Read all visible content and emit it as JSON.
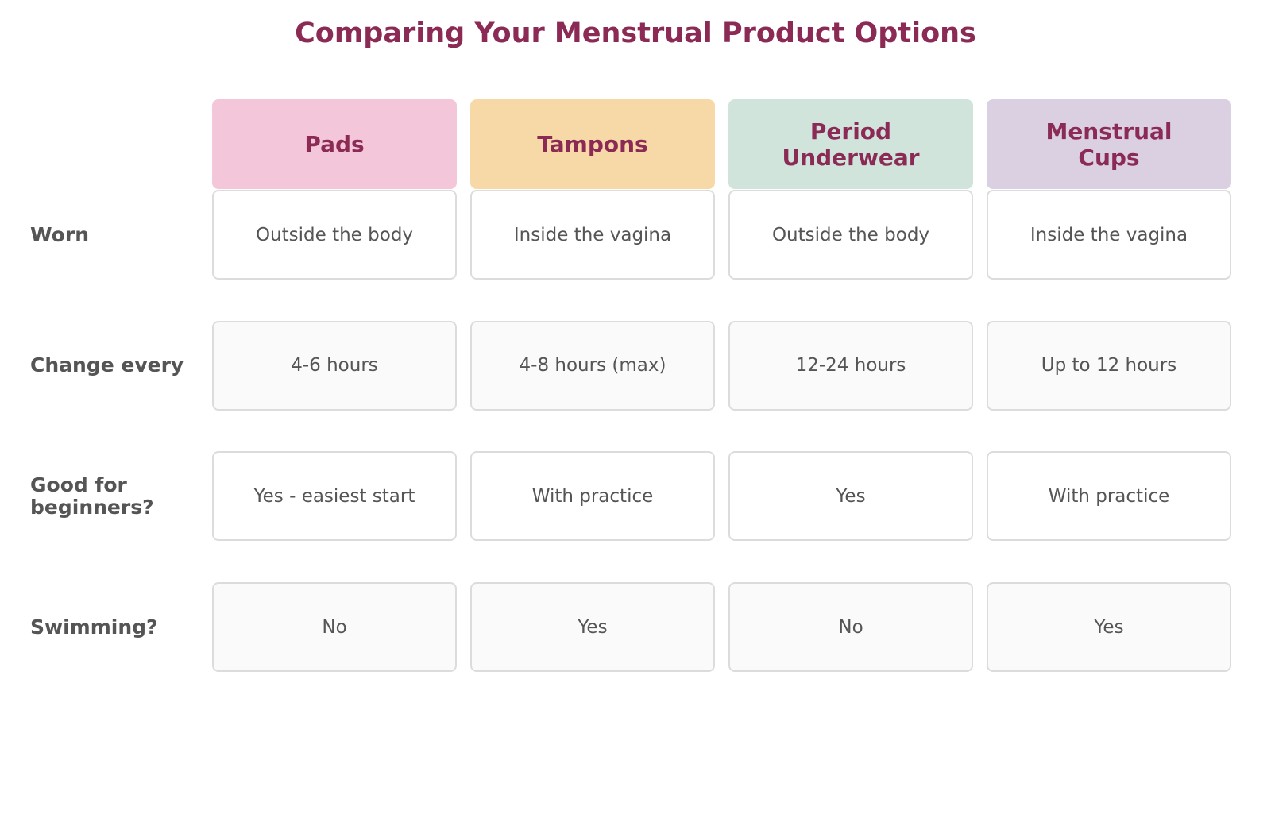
{
  "title": "Comparing Your Menstrual Product Options",
  "table": {
    "columns": [
      "Pads",
      "Tampons",
      "Period Underwear",
      "Menstrual Cups"
    ],
    "rows": [
      {
        "label": "Worn",
        "cells": [
          "Outside the body",
          "Inside the vagina",
          "Outside the body",
          "Inside the vagina"
        ]
      },
      {
        "label": "Change every",
        "cells": [
          "4-6 hours",
          "4-8 hours (max)",
          "12-24 hours",
          "Up to 12 hours"
        ]
      },
      {
        "label": "Good for beginners?",
        "cells": [
          "Yes - easiest start",
          "With practice",
          "Yes",
          "With practice"
        ]
      },
      {
        "label": "Swimming?",
        "cells": [
          "No",
          "Yes",
          "No",
          "Yes"
        ]
      }
    ]
  }
}
